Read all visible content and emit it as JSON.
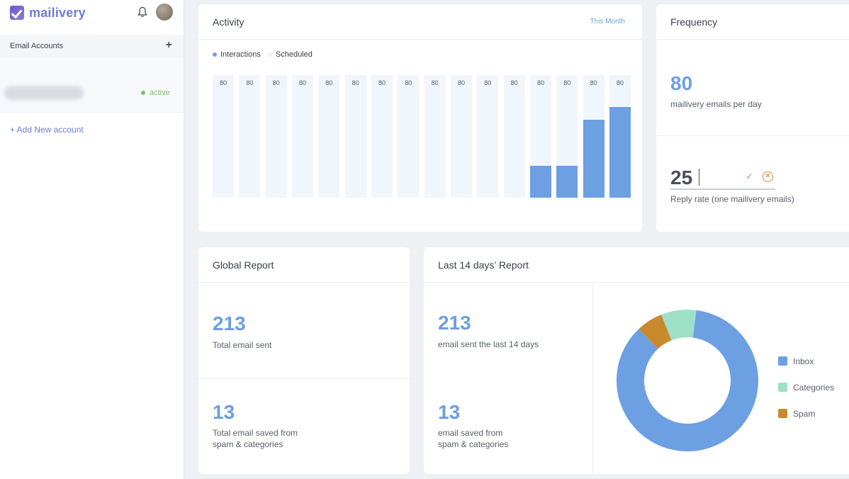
{
  "sidebar": {
    "brand": "mailivery",
    "accounts_header": "Email Accounts",
    "account": {
      "status": "active"
    },
    "add_account": "+ Add New account"
  },
  "activity": {
    "title": "Activity",
    "filter": "This Month",
    "legend": {
      "interactions": "Interactions",
      "scheduled": "Scheduled"
    }
  },
  "frequency": {
    "title": "Frequency",
    "emails_per_day": "80",
    "emails_per_day_label": "mailivery emails per day",
    "reply_rate_value": "25",
    "reply_rate_label": "Reply rate (one mailivery emails)"
  },
  "global_report": {
    "title": "Global Report",
    "total_sent": "213",
    "total_sent_label": "Total email sent",
    "saved": "13",
    "saved_label_1": "Total email saved from",
    "saved_label_2": "spam & categories"
  },
  "last14": {
    "title": "Last 14 days’ Report",
    "sent": "213",
    "sent_label": "email sent the last 14 days",
    "saved": "13",
    "saved_label_1": "email saved from",
    "saved_label_2": "spam & categories"
  },
  "colors": {
    "accent": "#6d9fe3",
    "brand": "#6f7bd8",
    "inbox": "#6d9fe3",
    "categories": "#9ee0c6",
    "spam": "#c98a2e",
    "active": "#7cc26e"
  },
  "chart_data": [
    {
      "type": "bar",
      "categories": [
        "",
        "",
        "",
        "",
        "",
        "",
        "",
        "",
        "",
        "",
        "",
        "",
        "",
        "",
        "",
        ""
      ],
      "series": [
        {
          "name": "Interactions",
          "values": [
            0,
            0,
            0,
            0,
            0,
            0,
            0,
            0,
            0,
            0,
            0,
            0,
            21,
            21,
            51,
            59
          ]
        },
        {
          "name": "Scheduled",
          "values": [
            80,
            80,
            80,
            80,
            80,
            80,
            80,
            80,
            80,
            80,
            80,
            80,
            80,
            80,
            80,
            80
          ]
        }
      ],
      "data_labels": [
        "80",
        "80",
        "80",
        "80",
        "80",
        "80",
        "80",
        "80",
        "80",
        "80",
        "80",
        "80",
        "80",
        "80",
        "80",
        "80"
      ],
      "ylim": [
        0,
        80
      ]
    },
    {
      "type": "pie",
      "donut": true,
      "labels": [
        "Inbox",
        "Categories",
        "Spam"
      ],
      "values": [
        86,
        8,
        6
      ],
      "colors": [
        "#6d9fe3",
        "#9ee0c6",
        "#c98a2e"
      ]
    }
  ]
}
